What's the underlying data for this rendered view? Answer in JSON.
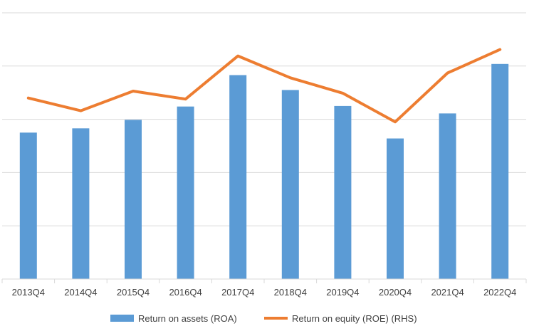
{
  "chart_data": {
    "type": "bar",
    "categories": [
      "2013Q4",
      "2014Q4",
      "2015Q4",
      "2016Q4",
      "2017Q4",
      "2018Q4",
      "2019Q4",
      "2020Q4",
      "2021Q4",
      "2022Q4"
    ],
    "series": [
      {
        "name": "Return on assets (ROA)",
        "type": "bar",
        "axis": "left",
        "color": "#5b9bd5",
        "values": [
          2.75,
          2.83,
          2.99,
          3.24,
          3.83,
          3.55,
          3.25,
          2.64,
          3.11,
          4.04
        ]
      },
      {
        "name": "Return on equity (ROE) (RHS)",
        "type": "line",
        "axis": "right",
        "color": "#ed7d31",
        "values": [
          3.4,
          3.16,
          3.53,
          3.38,
          4.19,
          3.78,
          3.49,
          2.95,
          3.87,
          4.31
        ]
      }
    ],
    "ylim": [
      0,
      5
    ],
    "y2lim": [
      0,
      5
    ],
    "grid": true,
    "legend_position": "bottom"
  }
}
